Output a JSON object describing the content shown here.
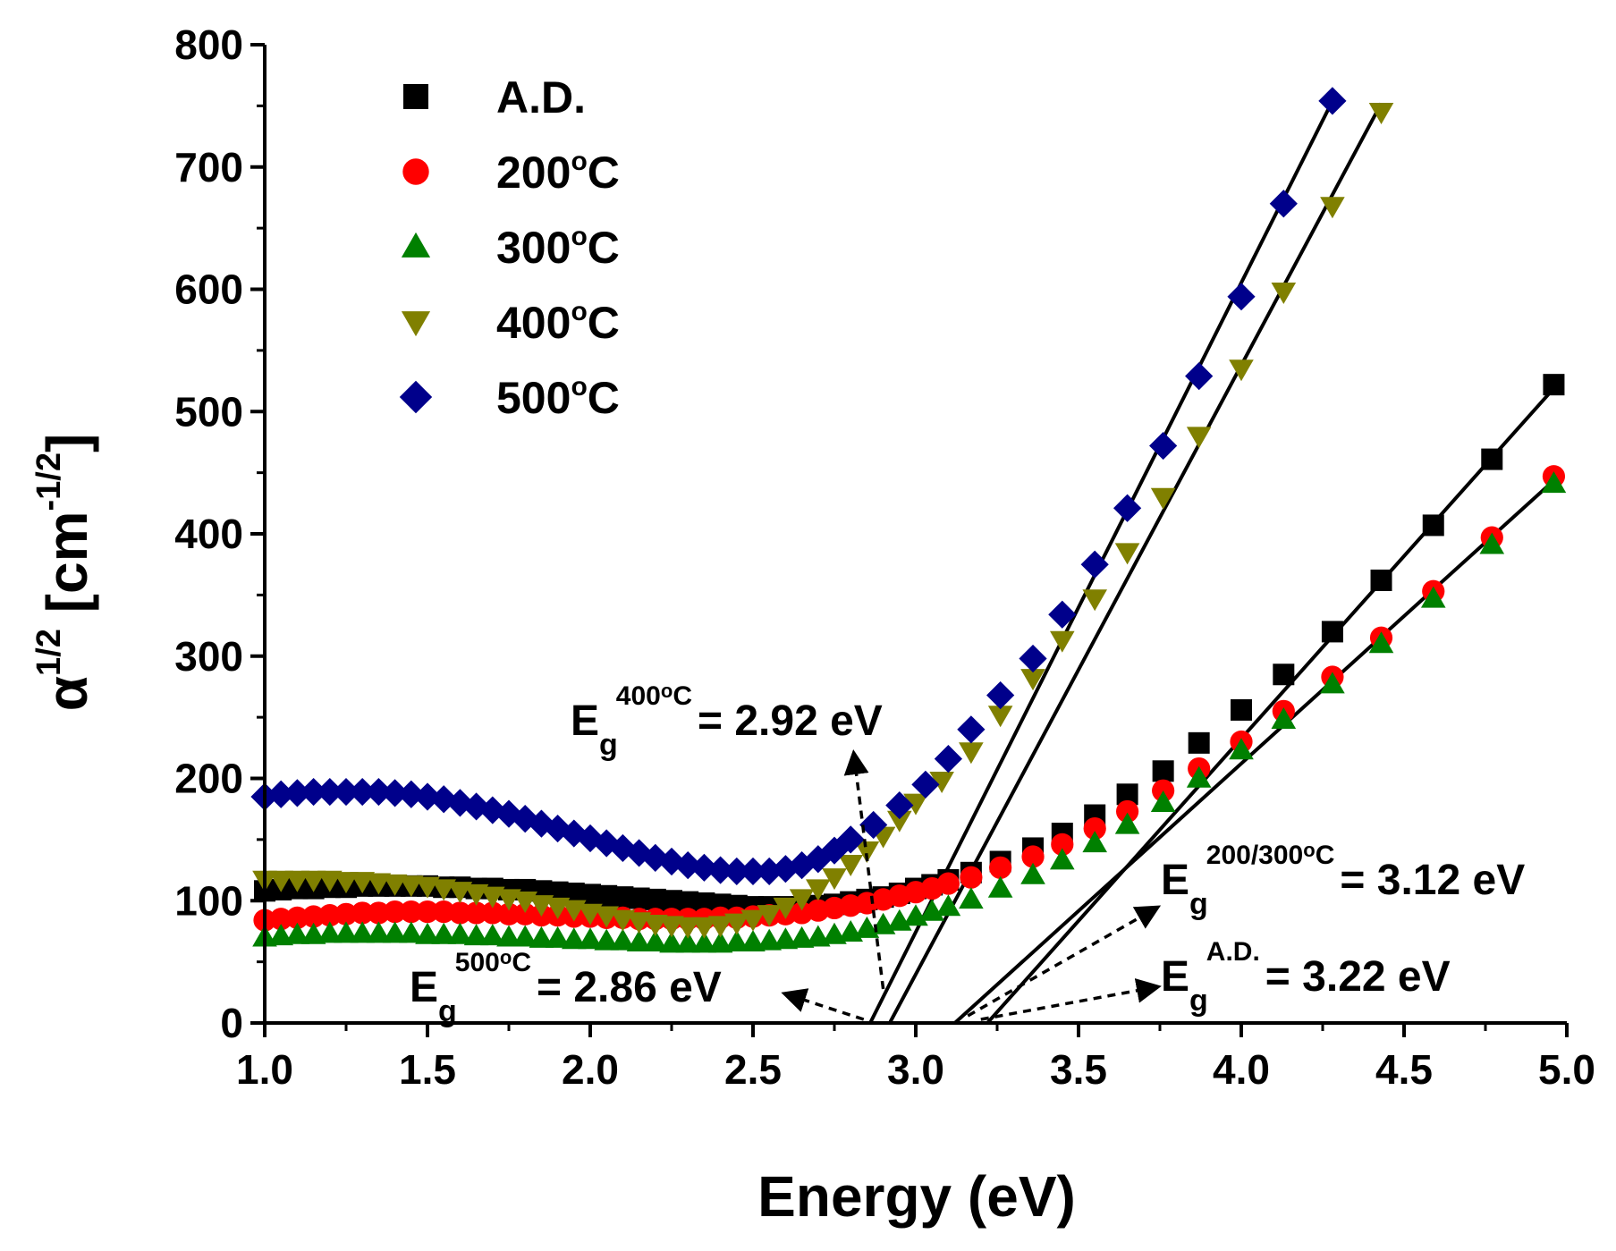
{
  "chart_data": {
    "type": "scatter",
    "xlabel": "Energy (eV)",
    "ylabel": {
      "base": "α",
      "sup": "1/2",
      "unit_open": " [cm",
      "unit_sup": "-1/2",
      "unit_close": "]"
    },
    "xlim": [
      1.0,
      5.0
    ],
    "ylim": [
      0,
      800
    ],
    "xticks": [
      "1.0",
      "1.5",
      "2.0",
      "2.5",
      "3.0",
      "3.5",
      "4.0",
      "4.5",
      "5.0"
    ],
    "yticks": [
      "0",
      "100",
      "200",
      "300",
      "400",
      "500",
      "600",
      "700",
      "800"
    ],
    "legend_position": "top-left",
    "series": [
      {
        "name": "A.D.",
        "temp": "",
        "sup": "",
        "color": "#000000",
        "marker": "square",
        "points": [
          [
            1.0,
            108
          ],
          [
            1.05,
            109
          ],
          [
            1.1,
            110
          ],
          [
            1.15,
            110
          ],
          [
            1.2,
            111
          ],
          [
            1.25,
            111
          ],
          [
            1.3,
            112
          ],
          [
            1.35,
            112
          ],
          [
            1.4,
            112
          ],
          [
            1.45,
            112
          ],
          [
            1.5,
            112
          ],
          [
            1.55,
            111
          ],
          [
            1.6,
            111
          ],
          [
            1.65,
            110
          ],
          [
            1.7,
            110
          ],
          [
            1.75,
            109
          ],
          [
            1.8,
            109
          ],
          [
            1.85,
            108
          ],
          [
            1.9,
            107
          ],
          [
            1.95,
            106
          ],
          [
            2.0,
            105
          ],
          [
            2.05,
            104
          ],
          [
            2.1,
            103
          ],
          [
            2.15,
            102
          ],
          [
            2.2,
            101
          ],
          [
            2.25,
            100
          ],
          [
            2.3,
            99
          ],
          [
            2.35,
            98
          ],
          [
            2.4,
            97
          ],
          [
            2.45,
            96
          ],
          [
            2.5,
            95
          ],
          [
            2.55,
            95
          ],
          [
            2.6,
            95
          ],
          [
            2.65,
            95
          ],
          [
            2.7,
            96
          ],
          [
            2.75,
            97
          ],
          [
            2.8,
            99
          ],
          [
            2.85,
            101
          ],
          [
            2.9,
            103
          ],
          [
            2.95,
            106
          ],
          [
            3.0,
            110
          ],
          [
            3.05,
            113
          ],
          [
            3.1,
            117
          ],
          [
            3.17,
            123
          ],
          [
            3.26,
            132
          ],
          [
            3.36,
            143
          ],
          [
            3.45,
            155
          ],
          [
            3.55,
            170
          ],
          [
            3.65,
            187
          ],
          [
            3.76,
            206
          ],
          [
            3.87,
            229
          ],
          [
            4.0,
            256
          ],
          [
            4.13,
            285
          ],
          [
            4.28,
            320
          ],
          [
            4.43,
            362
          ],
          [
            4.59,
            407
          ],
          [
            4.77,
            461
          ],
          [
            4.96,
            522
          ]
        ]
      },
      {
        "name": "200",
        "temp": "200",
        "sup": "o",
        "unit": "C",
        "color": "#ff0000",
        "marker": "circle",
        "points": [
          [
            1.0,
            84
          ],
          [
            1.05,
            85
          ],
          [
            1.1,
            86
          ],
          [
            1.15,
            87
          ],
          [
            1.2,
            88
          ],
          [
            1.25,
            89
          ],
          [
            1.3,
            90
          ],
          [
            1.35,
            90
          ],
          [
            1.4,
            91
          ],
          [
            1.45,
            91
          ],
          [
            1.5,
            91
          ],
          [
            1.55,
            91
          ],
          [
            1.6,
            90
          ],
          [
            1.65,
            90
          ],
          [
            1.7,
            90
          ],
          [
            1.75,
            89
          ],
          [
            1.8,
            89
          ],
          [
            1.85,
            88
          ],
          [
            1.9,
            88
          ],
          [
            1.95,
            87
          ],
          [
            2.0,
            87
          ],
          [
            2.05,
            86
          ],
          [
            2.1,
            86
          ],
          [
            2.15,
            85
          ],
          [
            2.2,
            85
          ],
          [
            2.25,
            85
          ],
          [
            2.3,
            85
          ],
          [
            2.35,
            85
          ],
          [
            2.4,
            86
          ],
          [
            2.45,
            86
          ],
          [
            2.5,
            87
          ],
          [
            2.55,
            88
          ],
          [
            2.6,
            89
          ],
          [
            2.65,
            90
          ],
          [
            2.7,
            92
          ],
          [
            2.75,
            94
          ],
          [
            2.8,
            96
          ],
          [
            2.85,
            98
          ],
          [
            2.9,
            101
          ],
          [
            2.95,
            104
          ],
          [
            3.0,
            107
          ],
          [
            3.05,
            110
          ],
          [
            3.1,
            114
          ],
          [
            3.17,
            119
          ],
          [
            3.26,
            127
          ],
          [
            3.36,
            136
          ],
          [
            3.45,
            146
          ],
          [
            3.55,
            159
          ],
          [
            3.65,
            173
          ],
          [
            3.76,
            190
          ],
          [
            3.87,
            208
          ],
          [
            4.0,
            230
          ],
          [
            4.13,
            255
          ],
          [
            4.28,
            283
          ],
          [
            4.43,
            315
          ],
          [
            4.59,
            353
          ],
          [
            4.77,
            397
          ],
          [
            4.96,
            447
          ]
        ]
      },
      {
        "name": "300",
        "temp": "300",
        "sup": "o",
        "unit": "C",
        "color": "#008000",
        "marker": "triangle-up",
        "points": [
          [
            1.0,
            70
          ],
          [
            1.05,
            71
          ],
          [
            1.1,
            72
          ],
          [
            1.15,
            72
          ],
          [
            1.2,
            73
          ],
          [
            1.25,
            73
          ],
          [
            1.3,
            73
          ],
          [
            1.35,
            73
          ],
          [
            1.4,
            73
          ],
          [
            1.45,
            73
          ],
          [
            1.5,
            72
          ],
          [
            1.55,
            72
          ],
          [
            1.6,
            72
          ],
          [
            1.65,
            71
          ],
          [
            1.7,
            71
          ],
          [
            1.75,
            70
          ],
          [
            1.8,
            70
          ],
          [
            1.85,
            69
          ],
          [
            1.9,
            69
          ],
          [
            1.95,
            68
          ],
          [
            2.0,
            68
          ],
          [
            2.05,
            67
          ],
          [
            2.1,
            67
          ],
          [
            2.15,
            66
          ],
          [
            2.2,
            66
          ],
          [
            2.25,
            65
          ],
          [
            2.3,
            65
          ],
          [
            2.35,
            65
          ],
          [
            2.4,
            65
          ],
          [
            2.45,
            66
          ],
          [
            2.5,
            66
          ],
          [
            2.55,
            67
          ],
          [
            2.6,
            68
          ],
          [
            2.65,
            69
          ],
          [
            2.7,
            70
          ],
          [
            2.75,
            72
          ],
          [
            2.8,
            74
          ],
          [
            2.85,
            77
          ],
          [
            2.9,
            80
          ],
          [
            2.95,
            83
          ],
          [
            3.0,
            87
          ],
          [
            3.05,
            91
          ],
          [
            3.1,
            95
          ],
          [
            3.17,
            101
          ],
          [
            3.26,
            110
          ],
          [
            3.36,
            121
          ],
          [
            3.45,
            133
          ],
          [
            3.55,
            147
          ],
          [
            3.65,
            162
          ],
          [
            3.76,
            180
          ],
          [
            3.87,
            200
          ],
          [
            4.0,
            223
          ],
          [
            4.13,
            248
          ],
          [
            4.28,
            277
          ],
          [
            4.43,
            310
          ],
          [
            4.59,
            347
          ],
          [
            4.77,
            391
          ],
          [
            4.96,
            441
          ]
        ]
      },
      {
        "name": "400",
        "temp": "400",
        "sup": "o",
        "unit": "C",
        "color": "#808000",
        "marker": "triangle-down",
        "points": [
          [
            1.0,
            117
          ],
          [
            1.05,
            117
          ],
          [
            1.1,
            117
          ],
          [
            1.15,
            117
          ],
          [
            1.2,
            117
          ],
          [
            1.25,
            116
          ],
          [
            1.3,
            116
          ],
          [
            1.35,
            115
          ],
          [
            1.4,
            114
          ],
          [
            1.45,
            113
          ],
          [
            1.5,
            112
          ],
          [
            1.55,
            110
          ],
          [
            1.6,
            108
          ],
          [
            1.65,
            106
          ],
          [
            1.7,
            104
          ],
          [
            1.75,
            102
          ],
          [
            1.8,
            100
          ],
          [
            1.85,
            97
          ],
          [
            1.9,
            95
          ],
          [
            1.95,
            93
          ],
          [
            2.0,
            90
          ],
          [
            2.05,
            88
          ],
          [
            2.1,
            85
          ],
          [
            2.15,
            83
          ],
          [
            2.2,
            81
          ],
          [
            2.25,
            80
          ],
          [
            2.3,
            79
          ],
          [
            2.35,
            79
          ],
          [
            2.4,
            80
          ],
          [
            2.45,
            82
          ],
          [
            2.5,
            85
          ],
          [
            2.55,
            89
          ],
          [
            2.6,
            95
          ],
          [
            2.65,
            102
          ],
          [
            2.7,
            110
          ],
          [
            2.75,
            119
          ],
          [
            2.8,
            130
          ],
          [
            2.85,
            141
          ],
          [
            2.9,
            153
          ],
          [
            2.95,
            166
          ],
          [
            3.0,
            180
          ],
          [
            3.08,
            198
          ],
          [
            3.17,
            222
          ],
          [
            3.26,
            252
          ],
          [
            3.36,
            282
          ],
          [
            3.45,
            313
          ],
          [
            3.55,
            347
          ],
          [
            3.65,
            385
          ],
          [
            3.76,
            430
          ],
          [
            3.87,
            480
          ],
          [
            4.0,
            535
          ],
          [
            4.13,
            598
          ],
          [
            4.28,
            668
          ],
          [
            4.43,
            745
          ]
        ]
      },
      {
        "name": "500",
        "temp": "500",
        "sup": "o",
        "unit": "C",
        "color": "#00008b",
        "marker": "diamond",
        "points": [
          [
            1.0,
            185
          ],
          [
            1.05,
            187
          ],
          [
            1.1,
            188
          ],
          [
            1.15,
            189
          ],
          [
            1.2,
            189
          ],
          [
            1.25,
            189
          ],
          [
            1.3,
            189
          ],
          [
            1.35,
            189
          ],
          [
            1.4,
            188
          ],
          [
            1.45,
            187
          ],
          [
            1.5,
            185
          ],
          [
            1.55,
            183
          ],
          [
            1.6,
            180
          ],
          [
            1.65,
            177
          ],
          [
            1.7,
            174
          ],
          [
            1.75,
            171
          ],
          [
            1.8,
            167
          ],
          [
            1.85,
            163
          ],
          [
            1.9,
            159
          ],
          [
            1.95,
            155
          ],
          [
            2.0,
            151
          ],
          [
            2.05,
            147
          ],
          [
            2.1,
            143
          ],
          [
            2.15,
            139
          ],
          [
            2.2,
            135
          ],
          [
            2.25,
            132
          ],
          [
            2.3,
            129
          ],
          [
            2.35,
            127
          ],
          [
            2.4,
            125
          ],
          [
            2.45,
            124
          ],
          [
            2.5,
            124
          ],
          [
            2.55,
            124
          ],
          [
            2.6,
            126
          ],
          [
            2.65,
            129
          ],
          [
            2.7,
            134
          ],
          [
            2.75,
            141
          ],
          [
            2.8,
            150
          ],
          [
            2.87,
            162
          ],
          [
            2.95,
            178
          ],
          [
            3.03,
            195
          ],
          [
            3.1,
            216
          ],
          [
            3.17,
            240
          ],
          [
            3.26,
            268
          ],
          [
            3.36,
            298
          ],
          [
            3.45,
            334
          ],
          [
            3.55,
            375
          ],
          [
            3.65,
            421
          ],
          [
            3.76,
            472
          ],
          [
            3.87,
            529
          ],
          [
            4.0,
            594
          ],
          [
            4.13,
            670
          ],
          [
            4.28,
            754
          ]
        ]
      }
    ],
    "fit_lines": [
      {
        "x": [
          2.86,
          4.28
        ],
        "y": [
          0,
          754
        ]
      },
      {
        "x": [
          2.92,
          4.43
        ],
        "y": [
          0,
          752
        ]
      },
      {
        "x": [
          3.12,
          4.97
        ],
        "y": [
          0,
          446
        ]
      },
      {
        "x": [
          3.22,
          4.97
        ],
        "y": [
          0,
          522
        ]
      }
    ],
    "annotations": [
      {
        "id": "eg400",
        "base": "E",
        "sub": "g",
        "sup": "400",
        "sup2": "o",
        "sup3": "C",
        "value": "= 2.92 eV"
      },
      {
        "id": "eg500",
        "base": "E",
        "sub": "g",
        "sup": "500",
        "sup2": "o",
        "sup3": "C",
        "value": "= 2.86 eV"
      },
      {
        "id": "eg200300",
        "base": "E",
        "sub": "g",
        "sup": "200/300",
        "sup2": "o",
        "sup3": "C",
        "value": "= 3.12 eV"
      },
      {
        "id": "egad",
        "base": "E",
        "sub": "g",
        "sup": "A.D.",
        "sup2": "",
        "sup3": "",
        "value": "= 3.22 eV"
      }
    ]
  }
}
